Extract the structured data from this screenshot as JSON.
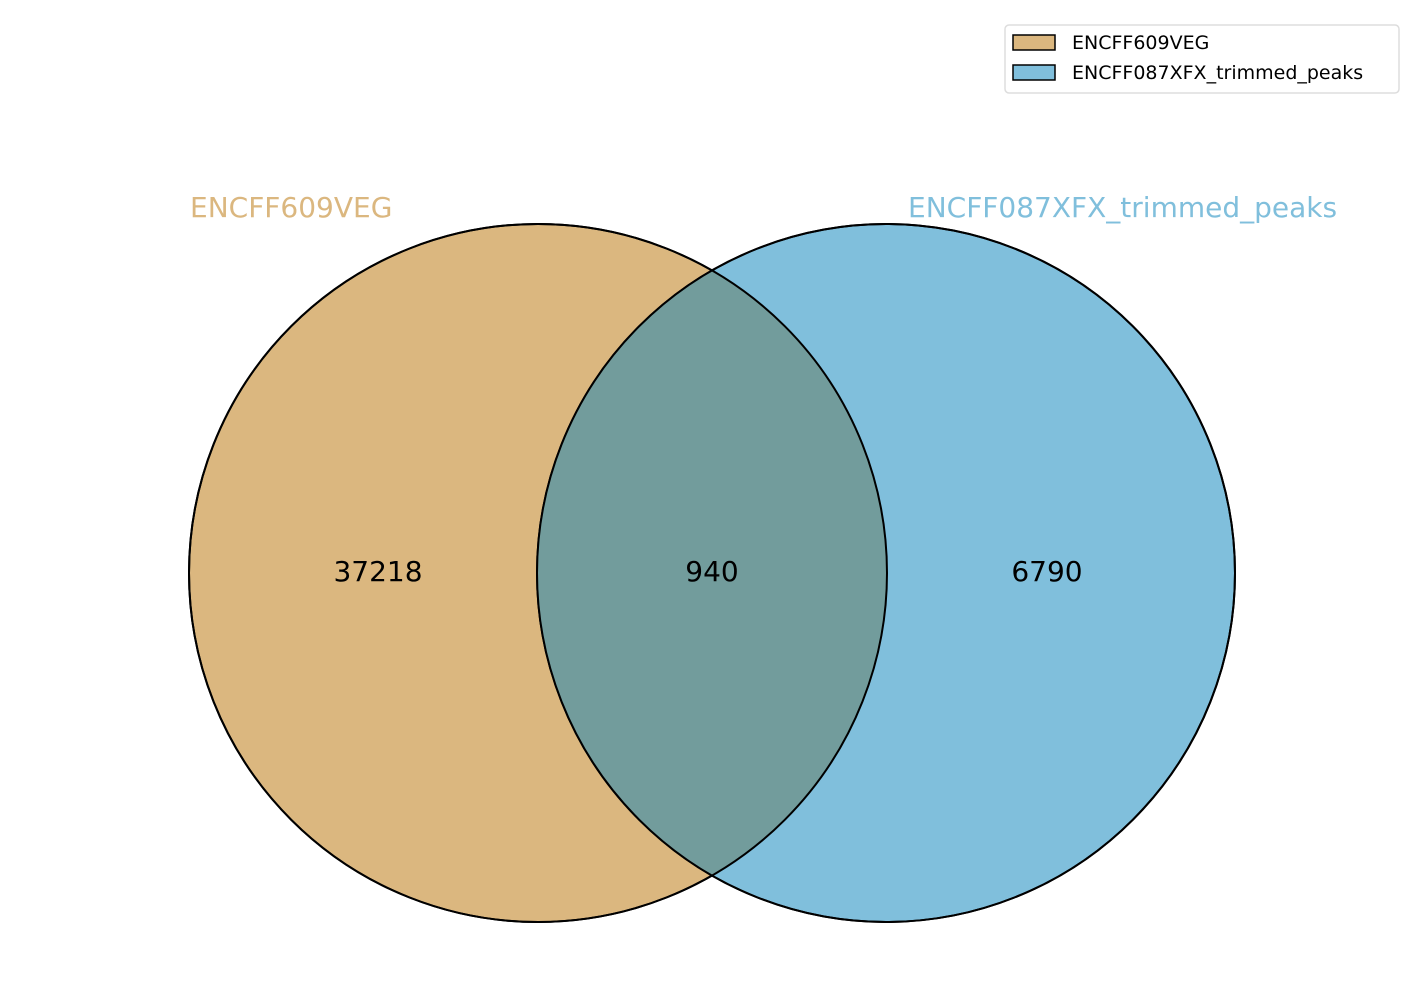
{
  "chart_data": {
    "type": "venn",
    "sets": [
      {
        "name": "ENCFF609VEG",
        "only_count": "37218",
        "color": "#dbb77f"
      },
      {
        "name": "ENCFF087XFX_trimmed_peaks",
        "only_count": "6790",
        "color": "#80bfdc"
      }
    ],
    "intersection": {
      "count": "940",
      "color": "#729c9c"
    },
    "legend": {
      "position": "top-right",
      "entries": [
        "ENCFF609VEG",
        "ENCFF087XFX_trimmed_peaks"
      ]
    },
    "outline_color": "#000000",
    "legend_border_color": "#dddddd"
  }
}
